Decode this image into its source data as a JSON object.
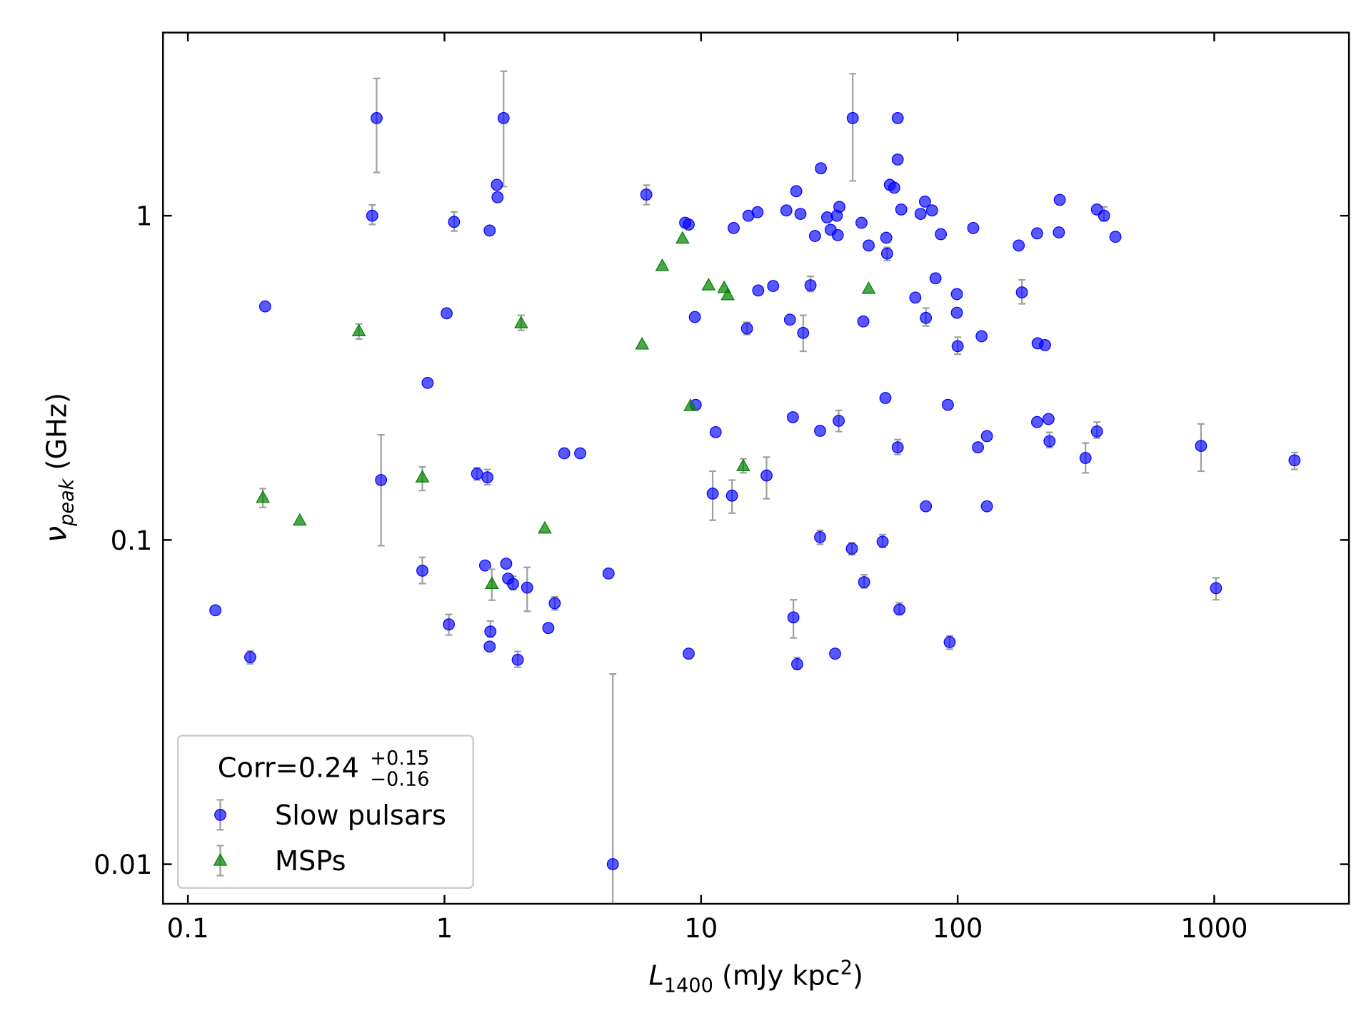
{
  "chart_data": {
    "type": "scatter",
    "xlabel": [
      "L",
      "1400",
      " (mJy kpc",
      "2",
      ")"
    ],
    "ylabel": [
      "ν",
      "peak",
      " (GHz)"
    ],
    "xscale": "log",
    "yscale": "log",
    "xlim": [
      0.08,
      3350
    ],
    "ylim": [
      0.00755,
      3.67
    ],
    "xticks": [
      0.1,
      1,
      10,
      100,
      1000
    ],
    "yticks": [
      0.01,
      0.1,
      1
    ],
    "legend": "lower left",
    "legend_title": [
      "Corr=0.24",
      "+0.15",
      "−0.16"
    ],
    "errorbar_color": "#a0a0a0",
    "series": [
      {
        "name": "Slow pulsars",
        "marker": "o",
        "color": "#0000ff",
        "x": [
          0.128,
          0.175,
          0.2,
          0.544,
          0.523,
          0.566,
          0.82,
          0.86,
          1.02,
          1.04,
          1.09,
          1.34,
          1.44,
          1.47,
          1.5,
          1.5,
          1.51,
          1.6,
          1.61,
          1.7,
          1.74,
          1.77,
          1.85,
          1.93,
          2.1,
          2.54,
          2.69,
          2.93,
          3.38,
          4.36,
          4.53,
          6.12,
          8.67,
          8.95,
          9.46,
          8.95,
          9.53,
          11.1,
          11.4,
          13.2,
          13.4,
          15.1,
          15.3,
          16.6,
          16.7,
          18.0,
          19.1,
          21.5,
          22.2,
          22.8,
          22.9,
          23.5,
          23.7,
          24.4,
          25.0,
          26.7,
          27.8,
          29.1,
          29.1,
          29.3,
          31.0,
          32.0,
          33.3,
          34.1,
          33.8,
          34.6,
          34.4,
          38.7,
          39.0,
          42.2,
          42.9,
          43.2,
          45.0,
          51.0,
          52.3,
          53.1,
          52.7,
          54.4,
          56.6,
          58.4,
          58.4,
          58.4,
          59.3,
          60.3,
          68.4,
          71.7,
          74.6,
          75.2,
          75.2,
          79.5,
          82.0,
          86.0,
          91.6,
          93.1,
          99.3,
          99.3,
          100,
          115,
          120,
          124,
          130,
          130,
          173,
          178,
          204,
          204,
          205,
          219,
          226,
          228,
          248,
          250,
          315,
          349,
          349,
          372,
          412,
          888,
          1016,
          2055
        ],
        "y": [
          0.0607,
          0.0435,
          0.525,
          2.0,
          1.0,
          0.153,
          0.0804,
          0.305,
          0.5,
          0.0549,
          0.957,
          0.16,
          0.0834,
          0.156,
          0.9,
          0.0469,
          0.0522,
          1.245,
          1.14,
          2.0,
          0.0845,
          0.076,
          0.0732,
          0.0427,
          0.0713,
          0.0535,
          0.0638,
          0.185,
          0.185,
          0.0788,
          0.01,
          1.162,
          0.951,
          0.939,
          0.487,
          0.0446,
          0.261,
          0.139,
          0.215,
          0.137,
          0.916,
          0.449,
          1.0,
          1.025,
          0.588,
          0.158,
          0.607,
          1.038,
          0.478,
          0.239,
          0.0577,
          1.19,
          0.0414,
          1.013,
          0.435,
          0.61,
          0.866,
          0.102,
          0.217,
          1.4,
          0.988,
          0.905,
          0.0446,
          0.871,
          1.0,
          1.065,
          0.233,
          0.094,
          2.0,
          0.951,
          0.472,
          0.0741,
          0.809,
          0.0988,
          0.274,
          0.764,
          0.855,
          1.245,
          1.22,
          2.0,
          1.49,
          0.193,
          0.061,
          1.045,
          0.559,
          1.013,
          1.105,
          0.484,
          0.127,
          1.038,
          0.641,
          0.877,
          0.261,
          0.0484,
          0.573,
          0.502,
          0.396,
          0.916,
          0.193,
          0.425,
          0.209,
          0.127,
          0.809,
          0.58,
          0.882,
          0.231,
          0.404,
          0.399,
          0.236,
          0.2016,
          0.888,
          1.119,
          0.179,
          0.216,
          1.045,
          1.0,
          0.861,
          0.195,
          0.071,
          0.176
        ],
        "yerr": [
          null,
          [
            0.002,
            0.002
          ],
          null,
          [
            0.64,
            0.65
          ],
          [
            0.06,
            0.08
          ],
          [
            0.057,
            0.058
          ],
          [
            0.007,
            0.008
          ],
          null,
          null,
          [
            0.004,
            0.004
          ],
          [
            0.06,
            0.07
          ],
          [
            0.007,
            0.007
          ],
          null,
          [
            0.008,
            0.009
          ],
          null,
          null,
          [
            0.002,
            0.004
          ],
          null,
          null,
          [
            0.77,
            0.79
          ],
          null,
          null,
          [
            0.003,
            0.004
          ],
          [
            0.0022,
            0.0026
          ],
          [
            0.011,
            0.011
          ],
          null,
          [
            0.003,
            0.003
          ],
          null,
          null,
          null,
          [
            0.005,
            0.0286
          ],
          [
            0.08,
            0.08
          ],
          null,
          null,
          null,
          null,
          null,
          [
            0.024,
            0.024
          ],
          null,
          [
            0.016,
            0.016
          ],
          null,
          [
            0.019,
            0.02
          ],
          null,
          null,
          null,
          [
            0.024,
            0.022
          ],
          null,
          null,
          null,
          null,
          [
            0.0078,
            0.0077
          ],
          null,
          [
            0.0015,
            0.002
          ],
          null,
          [
            0.053,
            0.058
          ],
          [
            0.026,
            0.04
          ],
          null,
          [
            0.005,
            0.005
          ],
          null,
          null,
          null,
          null,
          null,
          null,
          null,
          null,
          [
            0.017,
            0.018
          ],
          [
            0.004,
            0.004
          ],
          [
            0.72,
            0.74
          ],
          null,
          null,
          [
            0.003,
            0.004
          ],
          null,
          [
            0.004,
            0.005
          ],
          null,
          [
            0.037,
            0.034
          ],
          null,
          null,
          null,
          null,
          null,
          [
            0.0095,
            0.011
          ],
          [
            0.002,
            0.003
          ],
          null,
          null,
          null,
          null,
          [
            0.027,
            0.035
          ],
          null,
          null,
          null,
          null,
          null,
          [
            0.0024,
            0.0022
          ],
          null,
          null,
          [
            0.022,
            0.026
          ],
          null,
          null,
          null,
          null,
          null,
          null,
          [
            0.045,
            0.054
          ],
          null,
          null,
          null,
          null,
          null,
          [
            0.009,
            0.013
          ],
          null,
          null,
          [
            0.018,
            0.02
          ],
          [
            0.01,
            0.015
          ],
          null,
          [
            0.037,
            0.065
          ],
          null,
          [
            0.032,
            0.033
          ],
          [
            0.0056,
            0.0054
          ],
          [
            0.011,
            0.01
          ]
        ]
      },
      {
        "name": "MSPs",
        "marker": "^",
        "color": "#008000",
        "x": [
          0.196,
          0.273,
          0.464,
          0.82,
          1.53,
          1.99,
          2.46,
          5.89,
          7.06,
          8.47,
          9.1,
          10.7,
          12.3,
          12.7,
          14.6,
          45.0
        ],
        "y": [
          0.135,
          0.1148,
          0.4405,
          0.156,
          0.0732,
          0.466,
          0.1085,
          0.401,
          0.7,
          0.85,
          0.259,
          0.61,
          0.599,
          0.569,
          0.169,
          0.595
        ],
        "yerr": [
          [
            0.009,
            0.009
          ],
          null,
          [
            0.024,
            0.023
          ],
          [
            0.014,
            0.012
          ],
          [
            0.008,
            0.008
          ],
          [
            0.023,
            0.027
          ],
          null,
          null,
          null,
          null,
          null,
          null,
          null,
          null,
          [
            0.008,
            0.009
          ],
          null
        ]
      }
    ]
  }
}
